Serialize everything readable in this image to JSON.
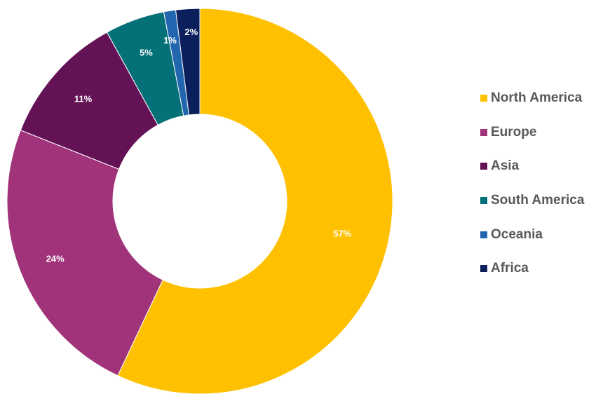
{
  "chart_data": {
    "type": "pie",
    "variant": "donut",
    "title": "",
    "categories": [
      "North America",
      "Europe",
      "Asia",
      "South America",
      "Oceania",
      "Africa"
    ],
    "values": [
      57,
      24,
      11,
      5,
      1,
      2
    ],
    "labels": [
      "57%",
      "24%",
      "11%",
      "5%",
      "1%",
      "2%"
    ],
    "colors": [
      "#FFC000",
      "#A0337A",
      "#641256",
      "#047178",
      "#2266AF",
      "#0A1F5C"
    ],
    "start_angle": "12 o'clock, clockwise",
    "legend_position": "right",
    "data_labels": "percent, white bold"
  },
  "legend": {
    "items": [
      {
        "label": "North America",
        "color": "#FFC000"
      },
      {
        "label": "Europe",
        "color": "#A0337A"
      },
      {
        "label": "Asia",
        "color": "#641256"
      },
      {
        "label": "South America",
        "color": "#047178"
      },
      {
        "label": "Oceania",
        "color": "#2266AF"
      },
      {
        "label": "Africa",
        "color": "#0A1F5C"
      }
    ]
  }
}
